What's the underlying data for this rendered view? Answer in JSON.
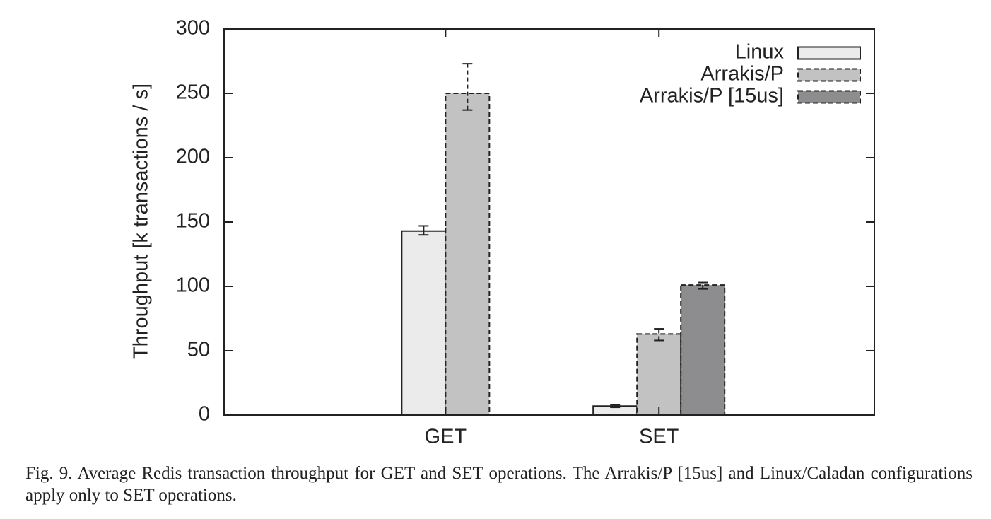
{
  "caption": "Fig. 9.  Average Redis transaction throughput for GET and SET operations. The Arrakis/P [15us] and Linux/Caladan configurations apply only to SET operations.",
  "chart_data": {
    "type": "bar",
    "ylabel": "Throughput [k transactions / s]",
    "xlabel": "",
    "ylim": [
      0,
      300
    ],
    "yticks": [
      0,
      50,
      100,
      150,
      200,
      250,
      300
    ],
    "categories": [
      "GET",
      "SET"
    ],
    "legend_position": "top-right",
    "series": [
      {
        "name": "Linux",
        "color": "#ebebeb",
        "dashed": false,
        "values": [
          143,
          7
        ],
        "error_low": [
          140,
          6
        ],
        "error_high": [
          147,
          8
        ]
      },
      {
        "name": "Arrakis/P",
        "color": "#c2c2c2",
        "dashed": true,
        "values": [
          250,
          63
        ],
        "error_low": [
          237,
          58
        ],
        "error_high": [
          273,
          67
        ]
      },
      {
        "name": "Arrakis/P [15us]",
        "color": "#8d8d8f",
        "dashed": true,
        "values": [
          null,
          101
        ],
        "error_low": [
          null,
          98
        ],
        "error_high": [
          null,
          103
        ]
      }
    ]
  }
}
